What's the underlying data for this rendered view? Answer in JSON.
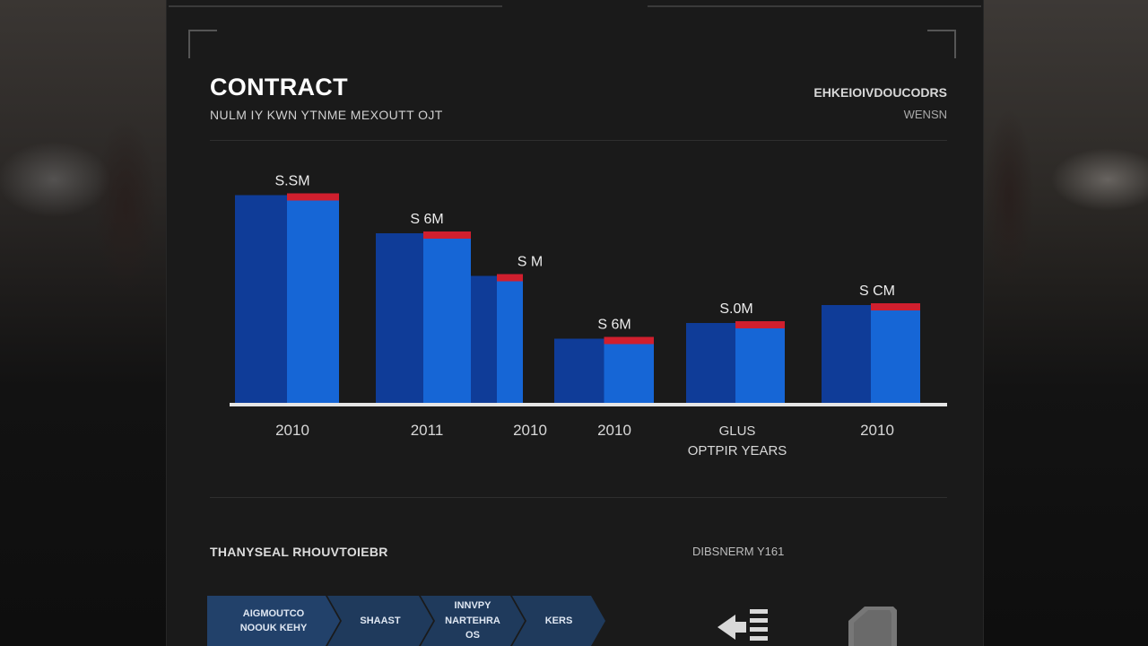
{
  "header": {
    "title": "CONTRACT",
    "subtitle": "NULM IY KWN YTNME MEXOUTT OJT",
    "right_title": "EHKEIOIVDOUCODRS",
    "right_sub": "WENSN"
  },
  "chart_data": {
    "type": "bar",
    "title": "CONTRACT",
    "categories": [
      "2010",
      "2011",
      "2010",
      "2010",
      "GLUS OPTPIR YEARS",
      "2010"
    ],
    "category_lines": [
      [
        "2010"
      ],
      [
        "2011"
      ],
      [
        "2010"
      ],
      [
        "2010"
      ],
      [
        "GLUS",
        "OPTPIR YEARS"
      ],
      [
        "2010"
      ]
    ],
    "bars": [
      {
        "label": "S.SM",
        "value": 9.3
      },
      {
        "label": "S 6M",
        "value": 7.6
      },
      {
        "label": "S M",
        "value": 5.7
      },
      {
        "label": "S 6M",
        "value": 2.9
      },
      {
        "label": "S.0M",
        "value": 3.6
      },
      {
        "label": "S CM",
        "value": 4.4
      }
    ],
    "ylim": [
      0,
      10
    ],
    "grid": false,
    "legend": "none",
    "colors": {
      "bar_dark": "#0f3c98",
      "bar_light": "#1666d6",
      "cap": "#d01f2e",
      "baseline": "#e6e6e6"
    }
  },
  "footer": {
    "left_heading": "THANYSEAL RHOUVTOIEBR",
    "right_heading": "DIBSNERM Y161",
    "steps": [
      {
        "lines": [
          "AIGMOUTCO",
          "NOOUK KEHY"
        ]
      },
      {
        "lines": [
          "SHAAST"
        ]
      },
      {
        "lines": [
          "INNVPY",
          "NARTEHRA",
          "OS"
        ]
      },
      {
        "lines": [
          "KERS"
        ]
      }
    ],
    "icons": [
      "arrow-left-lines-icon",
      "tag-icon"
    ]
  }
}
